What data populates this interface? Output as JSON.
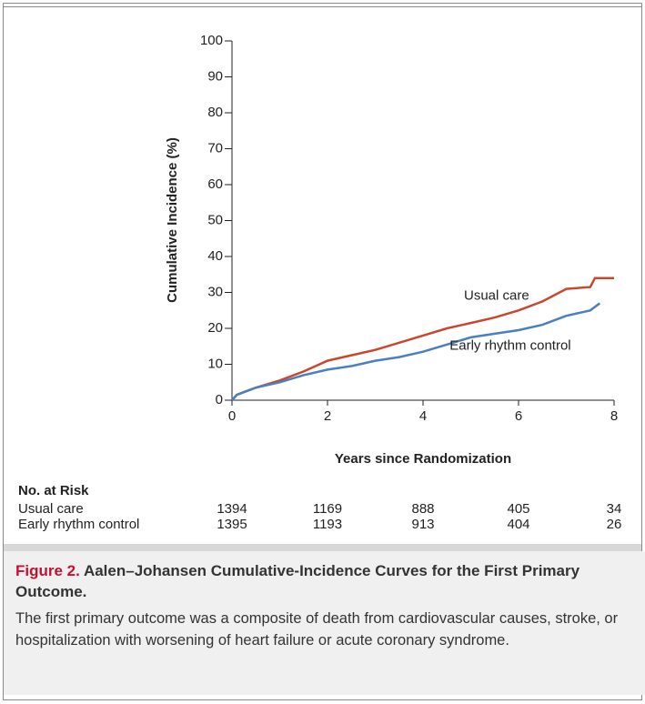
{
  "chart_data": {
    "type": "line",
    "ylabel": "Cumulative Incidence (%)",
    "xlabel": "Years since Randomization",
    "xlim": [
      0,
      8
    ],
    "xticks": [
      0,
      2,
      4,
      6,
      8
    ],
    "ylim": [
      0,
      100
    ],
    "yticks": [
      0,
      10,
      20,
      30,
      40,
      50,
      60,
      70,
      80,
      90,
      100
    ],
    "series": [
      {
        "name": "Usual care",
        "color": "#c9472d",
        "x": [
          0,
          0.1,
          0.3,
          0.5,
          1,
          1.5,
          2,
          2.5,
          3,
          3.5,
          4,
          4.5,
          5,
          5.5,
          6,
          6.5,
          7,
          7.5,
          7.6,
          8
        ],
        "values": [
          0,
          1.5,
          2.5,
          3.5,
          5.5,
          8,
          11,
          12.5,
          14,
          16,
          18,
          20,
          21.5,
          23,
          25,
          27.5,
          31,
          31.5,
          34,
          34
        ]
      },
      {
        "name": "Early rhythm control",
        "color": "#4a7fc1",
        "x": [
          0,
          0.1,
          0.5,
          1,
          1.5,
          2,
          2.5,
          3,
          3.5,
          4,
          4.5,
          5,
          5.5,
          6,
          6.5,
          7,
          7.5,
          7.7
        ],
        "values": [
          0,
          1.5,
          3.5,
          5,
          7,
          8.5,
          9.5,
          11,
          12,
          13.5,
          15.5,
          17.5,
          18.5,
          19.5,
          21,
          23.5,
          25,
          27
        ]
      }
    ]
  },
  "risk_table": {
    "header": "No. at Risk",
    "rows": [
      {
        "label": "Usual care",
        "values": [
          1394,
          1169,
          888,
          405,
          34
        ]
      },
      {
        "label": "Early rhythm control",
        "values": [
          1395,
          1193,
          913,
          404,
          26
        ]
      }
    ]
  },
  "figure": {
    "label": "Figure 2.",
    "title": "Aalen–Johansen Cumulative-Incidence Curves for the First Primary Outcome.",
    "caption": "The first primary outcome was a composite of death from cardiovascular causes, stroke, or hospitalization with worsening of heart failure or acute coronary syndrome."
  }
}
